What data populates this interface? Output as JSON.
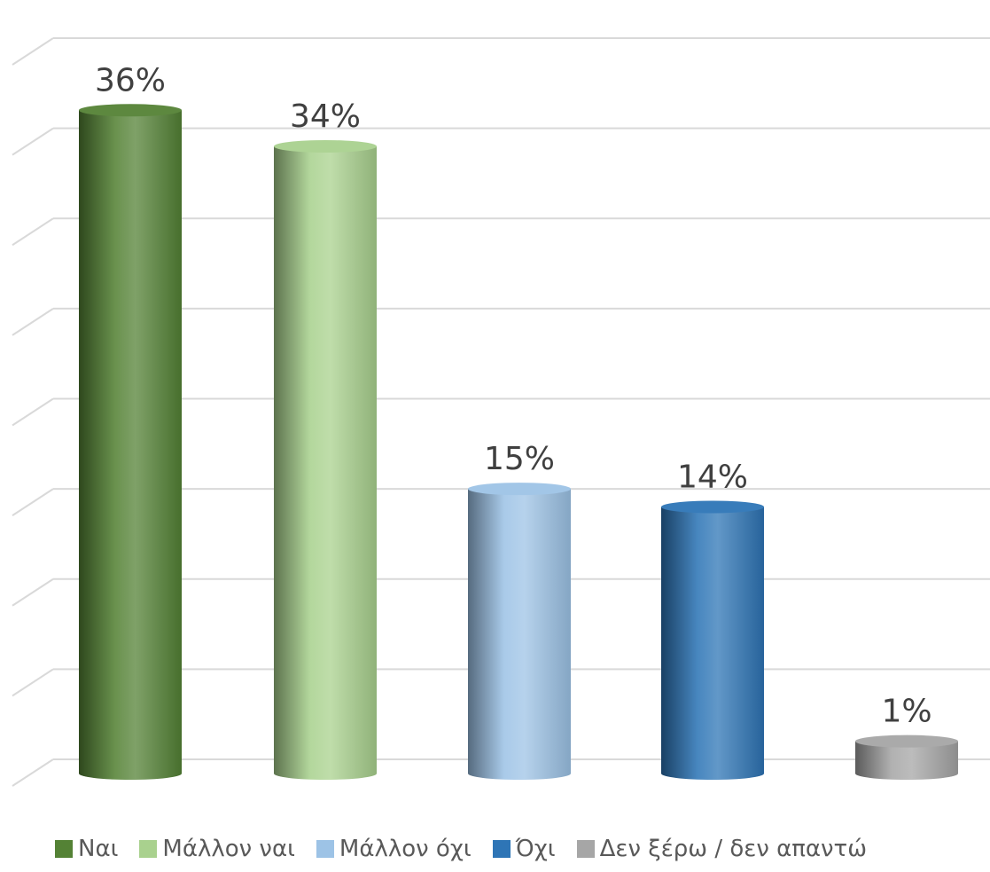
{
  "chart_data": {
    "type": "bar",
    "categories": [
      "Ναι",
      "Μάλλον ναι",
      "Μάλλον όχι",
      "Όχι",
      "Δεν ξέρω / δεν απαντώ"
    ],
    "values": [
      36,
      34,
      15,
      14,
      1
    ],
    "data_labels": [
      "36%",
      "34%",
      "15%",
      "14%",
      "1%"
    ],
    "ylim": [
      0,
      40
    ],
    "gridlines": true,
    "legend_position": "bottom",
    "colors": [
      "#548235",
      "#a9d18e",
      "#9dc3e6",
      "#2e75b6",
      "#a6a6a6"
    ],
    "style": "3d-cylinder"
  }
}
